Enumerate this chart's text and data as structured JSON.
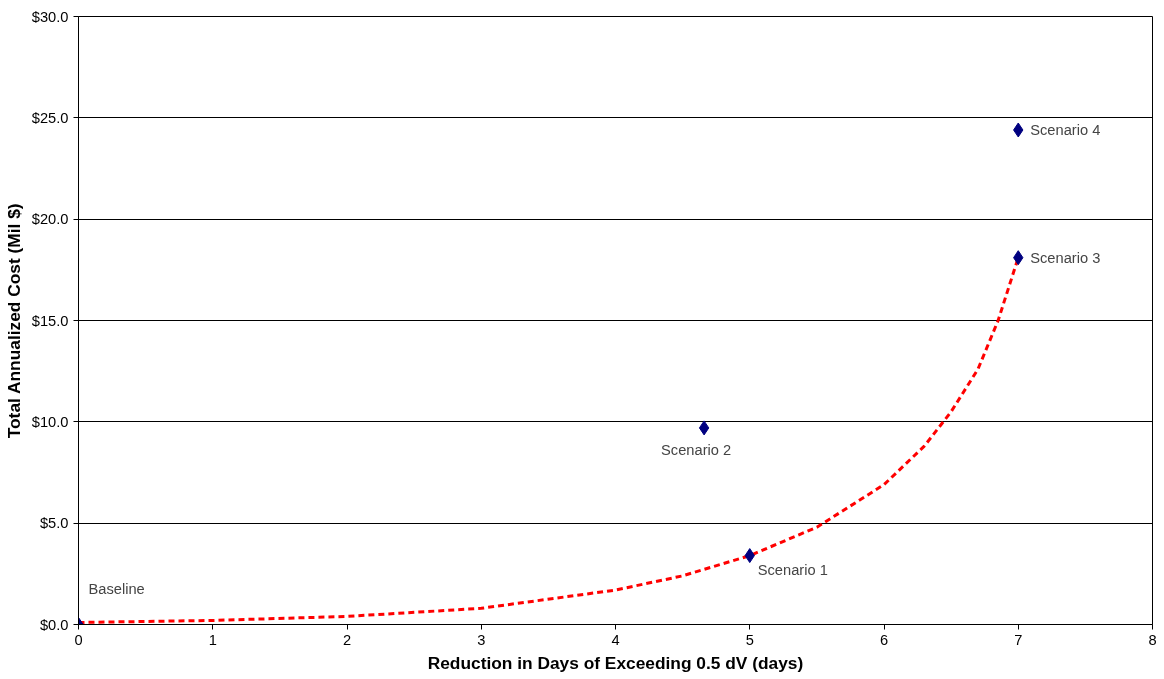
{
  "chart_data": {
    "type": "scatter",
    "xlabel": "Reduction in Days of Exceeding 0.5 dV (days)",
    "ylabel": "Total Annualized Cost (Mil $)",
    "series": [
      {
        "color": "#000080",
        "marker": "diamond",
        "x": [
          0,
          5,
          4.66,
          7,
          7
        ],
        "values": [
          0,
          3.4,
          9.7,
          18.1,
          24.4
        ]
      },
      {
        "type": "line",
        "color": "#ff0000",
        "line_style": "dashed",
        "marker": "none",
        "x": [
          0,
          1,
          2,
          3,
          4,
          4.5,
          5,
          5.5,
          6,
          6.3,
          6.5,
          6.7,
          6.85,
          7
        ],
        "values": [
          0.1,
          0.2,
          0.4,
          0.8,
          1.7,
          2.4,
          3.4,
          4.8,
          6.9,
          8.8,
          10.5,
          12.6,
          15,
          18.1
        ]
      }
    ],
    "annotations": [
      {
        "text": "Baseline",
        "x": 0,
        "y": 0
      },
      {
        "text": "Scenario 1",
        "x": 5,
        "y": 3.4
      },
      {
        "text": "Scenario 2",
        "x": 4.66,
        "y": 9.7
      },
      {
        "text": "Scenario 3",
        "x": 7,
        "y": 18.1
      },
      {
        "text": "Scenario 4",
        "x": 7,
        "y": 24.4
      }
    ],
    "xlim": [
      0,
      8
    ],
    "xticks": [
      0,
      1,
      2,
      3,
      4,
      5,
      6,
      7,
      8
    ],
    "ylim": [
      0,
      30
    ],
    "yticks": [
      {
        "value": 0,
        "label": "$0.0"
      },
      {
        "value": 5,
        "label": "$5.0"
      },
      {
        "value": 10,
        "label": "$10.0"
      },
      {
        "value": 15,
        "label": "$15.0"
      },
      {
        "value": 20,
        "label": "$20.0"
      },
      {
        "value": 25,
        "label": "$25.0"
      },
      {
        "value": 30,
        "label": "$30.0"
      }
    ],
    "grid": "y"
  }
}
